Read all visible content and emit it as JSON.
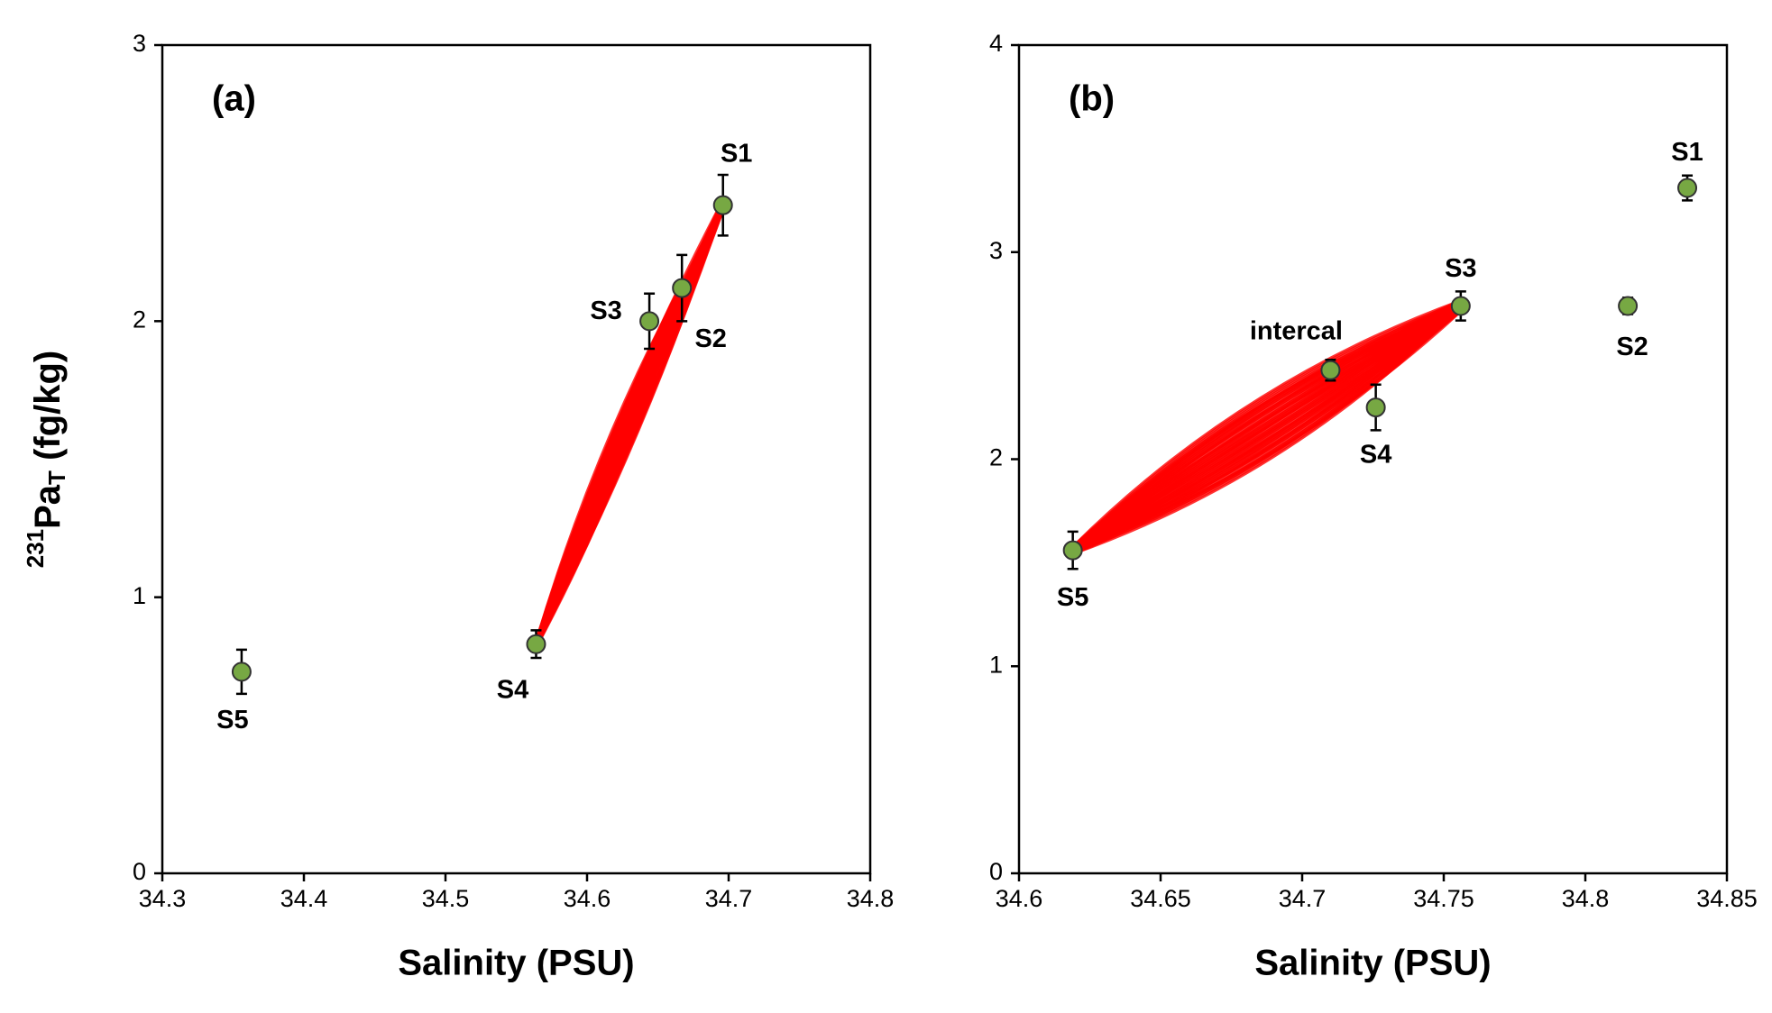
{
  "chart_data": [
    {
      "type": "scatter",
      "panel": "(a)",
      "xlabel": "Salinity (PSU)",
      "ylabel": {
        "sup": "231",
        "main": "Pa",
        "sub": "T",
        "rest": " (fg/kg)"
      },
      "xlim": [
        34.3,
        34.8
      ],
      "xticks": [
        34.3,
        34.4,
        34.5,
        34.6,
        34.7,
        34.8
      ],
      "ylim": [
        0,
        3
      ],
      "yticks": [
        0,
        1,
        2,
        3
      ],
      "color": "#77a843",
      "band_color": "#ff0000",
      "series": [
        {
          "labels": [
            "S1",
            "S2",
            "S3",
            "S4",
            "S5"
          ],
          "x": [
            34.696,
            34.667,
            34.644,
            34.564,
            34.356
          ],
          "values": [
            2.42,
            2.12,
            2.0,
            0.83,
            0.73
          ],
          "errors": [
            0.11,
            0.12,
            0.1,
            0.05,
            0.08
          ]
        }
      ]
    },
    {
      "type": "scatter",
      "panel": "(b)",
      "xlabel": "Salinity (PSU)",
      "xlim": [
        34.6,
        34.85
      ],
      "xticks": [
        34.6,
        34.65,
        34.7,
        34.75,
        34.8,
        34.85
      ],
      "ylim": [
        0,
        4
      ],
      "yticks": [
        0,
        1,
        2,
        3,
        4
      ],
      "color": "#77a843",
      "band_color": "#ff0000",
      "series": [
        {
          "labels": [
            "S1",
            "S2",
            "S3",
            "S4",
            "S5",
            "intercal"
          ],
          "x": [
            34.836,
            34.815,
            34.756,
            34.726,
            34.619,
            34.71
          ],
          "values": [
            3.31,
            2.74,
            2.74,
            2.25,
            1.56,
            2.43
          ],
          "errors": [
            0.06,
            0.04,
            0.07,
            0.11,
            0.09,
            0.05
          ]
        }
      ]
    }
  ]
}
